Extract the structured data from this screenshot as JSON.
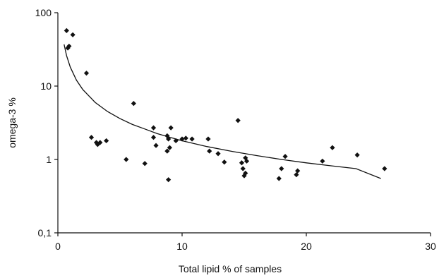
{
  "chart_data": {
    "type": "scatter",
    "title": "",
    "xlabel": "Total lipid % of samples",
    "ylabel": "omega-3 %",
    "x_scale": "linear",
    "y_scale": "log",
    "xlim": [
      0,
      30
    ],
    "ylim": [
      0.1,
      100
    ],
    "x_ticks": [
      {
        "value": 0,
        "label": "0"
      },
      {
        "value": 10,
        "label": "10"
      },
      {
        "value": 20,
        "label": "20"
      },
      {
        "value": 30,
        "label": "30"
      }
    ],
    "y_ticks": [
      {
        "value": 0.1,
        "label": "0,1"
      },
      {
        "value": 1,
        "label": "1"
      },
      {
        "value": 10,
        "label": "10"
      },
      {
        "value": 100,
        "label": "100"
      }
    ],
    "grid": false,
    "legend": "none",
    "marker_color": "#111111",
    "points": [
      {
        "x": 0.7,
        "y": 57
      },
      {
        "x": 0.9,
        "y": 35
      },
      {
        "x": 0.8,
        "y": 33
      },
      {
        "x": 1.2,
        "y": 50
      },
      {
        "x": 2.3,
        "y": 15
      },
      {
        "x": 2.7,
        "y": 2.0
      },
      {
        "x": 3.1,
        "y": 1.7
      },
      {
        "x": 3.2,
        "y": 1.6
      },
      {
        "x": 3.4,
        "y": 1.7
      },
      {
        "x": 3.9,
        "y": 1.8
      },
      {
        "x": 5.5,
        "y": 1.0
      },
      {
        "x": 6.1,
        "y": 5.8
      },
      {
        "x": 7.0,
        "y": 0.88
      },
      {
        "x": 7.7,
        "y": 2.7
      },
      {
        "x": 7.7,
        "y": 2.0
      },
      {
        "x": 7.9,
        "y": 1.55
      },
      {
        "x": 8.8,
        "y": 2.1
      },
      {
        "x": 8.8,
        "y": 1.3
      },
      {
        "x": 8.9,
        "y": 1.9
      },
      {
        "x": 9.0,
        "y": 1.45
      },
      {
        "x": 9.1,
        "y": 2.7
      },
      {
        "x": 8.9,
        "y": 0.53
      },
      {
        "x": 9.5,
        "y": 1.8
      },
      {
        "x": 10.0,
        "y": 1.9
      },
      {
        "x": 10.3,
        "y": 1.95
      },
      {
        "x": 10.8,
        "y": 1.9
      },
      {
        "x": 12.1,
        "y": 1.9
      },
      {
        "x": 12.2,
        "y": 1.3
      },
      {
        "x": 12.9,
        "y": 1.2
      },
      {
        "x": 13.4,
        "y": 0.92
      },
      {
        "x": 14.5,
        "y": 3.4
      },
      {
        "x": 14.8,
        "y": 0.9
      },
      {
        "x": 14.9,
        "y": 0.75
      },
      {
        "x": 15.0,
        "y": 0.6
      },
      {
        "x": 15.1,
        "y": 1.05
      },
      {
        "x": 15.2,
        "y": 0.95
      },
      {
        "x": 15.1,
        "y": 0.65
      },
      {
        "x": 17.8,
        "y": 0.55
      },
      {
        "x": 18.0,
        "y": 0.75
      },
      {
        "x": 18.3,
        "y": 1.1
      },
      {
        "x": 19.2,
        "y": 0.62
      },
      {
        "x": 19.3,
        "y": 0.7
      },
      {
        "x": 21.3,
        "y": 0.95
      },
      {
        "x": 22.1,
        "y": 1.45
      },
      {
        "x": 24.1,
        "y": 1.15
      },
      {
        "x": 26.3,
        "y": 0.75
      }
    ],
    "trendline": {
      "type": "power",
      "x": [
        0.5,
        0.7,
        1,
        1.5,
        2,
        3,
        4,
        5,
        6,
        7,
        8,
        10,
        12,
        14,
        16,
        18,
        20,
        22,
        24,
        26
      ],
      "y": [
        37,
        26,
        18.1,
        12.0,
        9.0,
        6.0,
        4.5,
        3.6,
        3.0,
        2.6,
        2.25,
        1.8,
        1.5,
        1.29,
        1.13,
        1.0,
        0.9,
        0.82,
        0.75,
        0.55
      ]
    }
  }
}
